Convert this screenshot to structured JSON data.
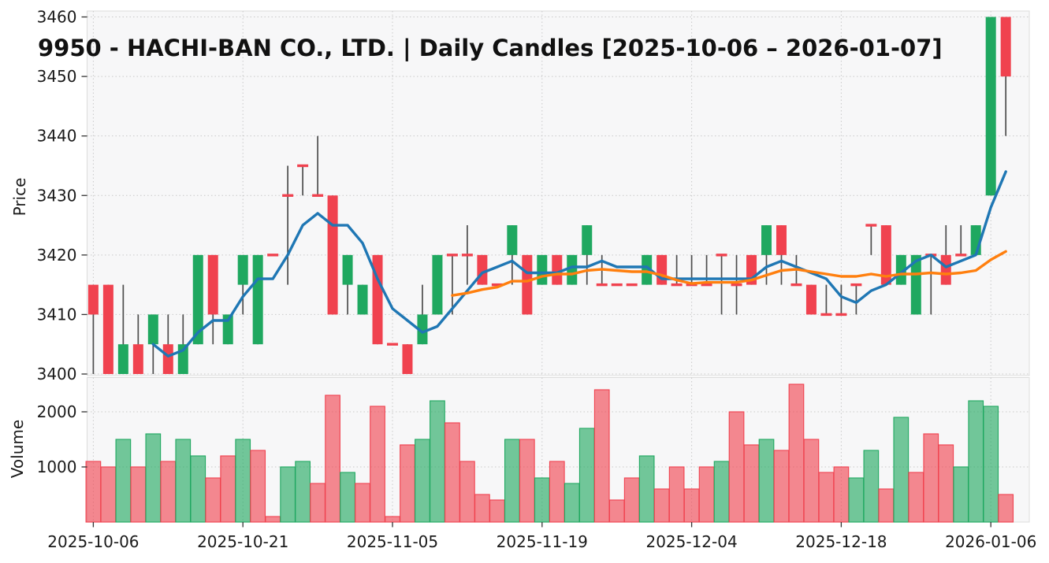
{
  "title": "9950 - HACHI-BAN CO., LTD. | Daily Candles [2025-10-06 – 2026-01-07]",
  "price_axis": {
    "label": "Price",
    "ticks": [
      3400,
      3410,
      3420,
      3430,
      3440,
      3450,
      3460
    ]
  },
  "volume_axis": {
    "label": "Volume",
    "ticks": [
      1000,
      2000
    ]
  },
  "x_axis": {
    "tick_labels": [
      "2025-10-06",
      "2025-10-21",
      "2025-11-05",
      "2025-11-19",
      "2025-12-04",
      "2025-12-18",
      "2026-01-06"
    ],
    "tick_indices": [
      0,
      10,
      20,
      30,
      40,
      50,
      60
    ]
  },
  "colors": {
    "up": "#1fa860",
    "down": "#f0424f",
    "wick": "#4d4d4d",
    "ma_fast": "#1f77b4",
    "ma_slow": "#ff7f0e",
    "panel_bg": "#f7f7f8",
    "grid": "#c9c9c9",
    "tick_text": "#1a1a1a",
    "spine": "#dcdcdc"
  },
  "chart_data": {
    "type": "candlestick+volume",
    "title": "9950 - HACHI-BAN CO., LTD. | Daily Candles [2025-10-06 – 2026-01-07]",
    "ylabel_price": "Price",
    "ylabel_volume": "Volume",
    "price_ylim": [
      3399.5,
      3461.5
    ],
    "volume_ylim": [
      0,
      2620
    ],
    "grid": true,
    "dates": [
      "2025-10-06",
      "2025-10-07",
      "2025-10-08",
      "2025-10-09",
      "2025-10-10",
      "2025-10-14",
      "2025-10-15",
      "2025-10-16",
      "2025-10-17",
      "2025-10-20",
      "2025-10-21",
      "2025-10-22",
      "2025-10-23",
      "2025-10-24",
      "2025-10-27",
      "2025-10-28",
      "2025-10-29",
      "2025-10-30",
      "2025-10-31",
      "2025-11-04",
      "2025-11-05",
      "2025-11-06",
      "2025-11-07",
      "2025-11-10",
      "2025-11-11",
      "2025-11-12",
      "2025-11-13",
      "2025-11-14",
      "2025-11-17",
      "2025-11-18",
      "2025-11-19",
      "2025-11-20",
      "2025-11-21",
      "2025-11-25",
      "2025-11-26",
      "2025-11-27",
      "2025-11-28",
      "2025-12-01",
      "2025-12-02",
      "2025-12-03",
      "2025-12-04",
      "2025-12-05",
      "2025-12-08",
      "2025-12-09",
      "2025-12-10",
      "2025-12-11",
      "2025-12-12",
      "2025-12-15",
      "2025-12-16",
      "2025-12-17",
      "2025-12-18",
      "2025-12-19",
      "2025-12-22",
      "2025-12-23",
      "2025-12-24",
      "2025-12-25",
      "2025-12-26",
      "2025-12-29",
      "2025-12-30",
      "2026-01-05",
      "2026-01-06",
      "2026-01-07"
    ],
    "ohlc": [
      [
        3415,
        3415,
        3400,
        3410
      ],
      [
        3415,
        3415,
        3400,
        3400
      ],
      [
        3400,
        3415,
        3400,
        3405
      ],
      [
        3405,
        3410,
        3400,
        3400
      ],
      [
        3405,
        3410,
        3400,
        3410
      ],
      [
        3405,
        3410,
        3400,
        3400
      ],
      [
        3400,
        3410,
        3400,
        3405
      ],
      [
        3405,
        3420,
        3405,
        3420
      ],
      [
        3420,
        3420,
        3405,
        3410
      ],
      [
        3405,
        3410,
        3405,
        3410
      ],
      [
        3415,
        3420,
        3410,
        3420
      ],
      [
        3405,
        3420,
        3405,
        3420
      ],
      [
        3420,
        3420,
        3420,
        3420
      ],
      [
        3430,
        3435,
        3415,
        3430
      ],
      [
        3435,
        3435,
        3430,
        3435
      ],
      [
        3430,
        3440,
        3430,
        3430
      ],
      [
        3430,
        3430,
        3410,
        3410
      ],
      [
        3415,
        3420,
        3410,
        3420
      ],
      [
        3410,
        3415,
        3410,
        3415
      ],
      [
        3420,
        3420,
        3405,
        3405
      ],
      [
        3405,
        3405,
        3405,
        3405
      ],
      [
        3405,
        3405,
        3400,
        3400
      ],
      [
        3405,
        3415,
        3405,
        3410
      ],
      [
        3410,
        3420,
        3410,
        3420
      ],
      [
        3420,
        3420,
        3410,
        3420
      ],
      [
        3420,
        3425,
        3415,
        3420
      ],
      [
        3420,
        3420,
        3415,
        3415
      ],
      [
        3415,
        3415,
        3415,
        3415
      ],
      [
        3420,
        3425,
        3415,
        3425
      ],
      [
        3420,
        3420,
        3410,
        3410
      ],
      [
        3415,
        3420,
        3415,
        3420
      ],
      [
        3420,
        3420,
        3415,
        3415
      ],
      [
        3415,
        3420,
        3415,
        3420
      ],
      [
        3420,
        3425,
        3415,
        3425
      ],
      [
        3415,
        3420,
        3415,
        3415
      ],
      [
        3415,
        3415,
        3415,
        3415
      ],
      [
        3415,
        3415,
        3415,
        3415
      ],
      [
        3415,
        3420,
        3415,
        3420
      ],
      [
        3420,
        3420,
        3415,
        3415
      ],
      [
        3415,
        3420,
        3415,
        3415
      ],
      [
        3415,
        3420,
        3415,
        3415
      ],
      [
        3415,
        3420,
        3415,
        3415
      ],
      [
        3420,
        3420,
        3410,
        3420
      ],
      [
        3415,
        3420,
        3410,
        3415
      ],
      [
        3420,
        3420,
        3415,
        3415
      ],
      [
        3420,
        3425,
        3415,
        3425
      ],
      [
        3425,
        3425,
        3415,
        3420
      ],
      [
        3415,
        3420,
        3415,
        3415
      ],
      [
        3415,
        3415,
        3410,
        3410
      ],
      [
        3410,
        3415,
        3410,
        3410
      ],
      [
        3410,
        3415,
        3410,
        3410
      ],
      [
        3415,
        3415,
        3410,
        3415
      ],
      [
        3425,
        3425,
        3420,
        3425
      ],
      [
        3425,
        3425,
        3415,
        3415
      ],
      [
        3415,
        3420,
        3415,
        3420
      ],
      [
        3410,
        3420,
        3410,
        3420
      ],
      [
        3420,
        3420,
        3410,
        3420
      ],
      [
        3420,
        3425,
        3415,
        3415
      ],
      [
        3420,
        3425,
        3420,
        3420
      ],
      [
        3420,
        3425,
        3420,
        3425
      ],
      [
        3430,
        3460,
        3430,
        3460
      ],
      [
        3460,
        3460,
        3440,
        3450
      ]
    ],
    "volumes": [
      1100,
      1000,
      1500,
      1000,
      1600,
      1100,
      1500,
      1200,
      800,
      1200,
      1500,
      1300,
      100,
      1000,
      1100,
      700,
      2300,
      900,
      700,
      2100,
      100,
      1400,
      1500,
      2200,
      1800,
      1100,
      500,
      400,
      1500,
      1500,
      800,
      1100,
      700,
      1700,
      2400,
      400,
      800,
      1200,
      600,
      1000,
      600,
      1000,
      1100,
      2000,
      1400,
      1500,
      1300,
      2500,
      1500,
      900,
      1000,
      800,
      1300,
      600,
      1900,
      900,
      1600,
      1400,
      1000,
      2200,
      2100,
      500
    ],
    "ma5": [
      null,
      null,
      null,
      null,
      3405,
      3403,
      3404,
      3407,
      3409,
      3409,
      3413,
      3416,
      3416,
      3420,
      3425,
      3427,
      3425,
      3425,
      3422,
      3416,
      3411,
      3409,
      3407,
      3408,
      3411,
      3414,
      3417,
      3418,
      3419,
      3417,
      3417,
      3417,
      3418,
      3418,
      3419,
      3418,
      3418,
      3418,
      3416,
      3416,
      3416,
      3416,
      3416,
      3416,
      3416,
      3418,
      3419,
      3418,
      3417,
      3416,
      3413,
      3412,
      3414,
      3415,
      3417,
      3419,
      3420,
      3418,
      3419,
      3420,
      3428,
      3434
    ],
    "ma25": [
      null,
      null,
      null,
      null,
      null,
      null,
      null,
      null,
      null,
      null,
      null,
      null,
      null,
      null,
      null,
      null,
      null,
      null,
      null,
      null,
      null,
      null,
      null,
      null,
      3413.2,
      3413.6,
      3414.2,
      3414.6,
      3415.6,
      3415.6,
      3416.4,
      3416.8,
      3416.8,
      3417.4,
      3417.6,
      3417.4,
      3417.2,
      3417.2,
      3416.6,
      3415.8,
      3415.2,
      3415.4,
      3415.4,
      3415.4,
      3415.8,
      3416.6,
      3417.4,
      3417.6,
      3417.2,
      3416.8,
      3416.4,
      3416.4,
      3416.8,
      3416.4,
      3416.8,
      3416.8,
      3417.0,
      3416.8,
      3417.0,
      3417.4,
      3419.2,
      3420.6
    ]
  }
}
